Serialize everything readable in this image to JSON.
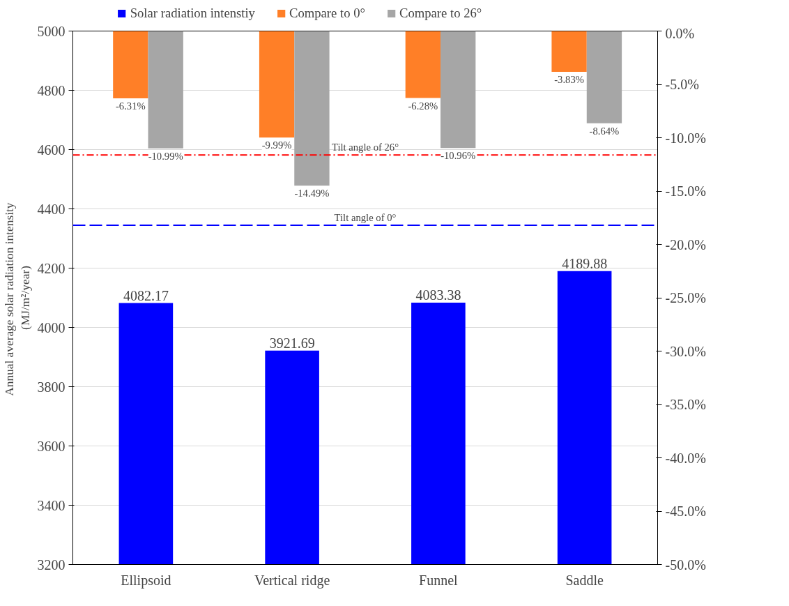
{
  "chart_data": {
    "type": "bar",
    "categories": [
      "Ellipsoid",
      "Vertical ridge",
      "Funnel",
      "Saddle"
    ],
    "ylabel": "Annual  average solar radiation intensity\n(MJ/m²/year)",
    "series": [
      {
        "name": "Solar radiation intenstiy",
        "color": "#0000ff",
        "values": [
          4082.17,
          3921.69,
          4083.38,
          4189.88
        ],
        "value_labels": [
          "4082.17",
          "3921.69",
          "4083.38",
          "4189.88"
        ]
      },
      {
        "name": "Compare to 0°",
        "color": "#ff7f27",
        "axis": "y2",
        "values": [
          -6.31,
          -9.99,
          -6.28,
          -3.83
        ],
        "value_labels": [
          "-6.31%",
          "-9.99%",
          "-6.28%",
          "-3.83%"
        ]
      },
      {
        "name": "Compare to 26°",
        "color": "#a6a6a6",
        "axis": "y2",
        "values": [
          -10.99,
          -14.49,
          -10.96,
          -8.64
        ],
        "value_labels": [
          "-10.99%",
          "-14.49%",
          "-10.96%",
          "-8.64%"
        ]
      }
    ],
    "ylim": [
      3200,
      5000
    ],
    "yticks": [
      3200,
      3400,
      3600,
      3800,
      4000,
      4200,
      4400,
      4600,
      4800,
      5000
    ],
    "y2lim": [
      -50,
      0
    ],
    "y2ticks": [
      {
        "value": -50,
        "label": "-50.0%"
      },
      {
        "value": -45,
        "label": "-45.0%"
      },
      {
        "value": -40,
        "label": "-40.0%"
      },
      {
        "value": -35,
        "label": "-35.0%"
      },
      {
        "value": -30,
        "label": "-30.0%"
      },
      {
        "value": -25,
        "label": "-25.0%"
      },
      {
        "value": -20,
        "label": "-20.0%"
      },
      {
        "value": -15,
        "label": "-15.0%"
      },
      {
        "value": -10,
        "label": "-10.0%"
      },
      {
        "value": -5,
        "label": "-5.0%"
      },
      {
        "value": 0,
        "label": "0.0%"
      }
    ],
    "ref_lines": [
      {
        "axis": "y",
        "value": 4582,
        "label": "Tilt angle of 26°",
        "color": "#ff0000",
        "line_style": "dashdot"
      },
      {
        "axis": "y",
        "value": 4345,
        "label": "Tilt angle of 0°",
        "color": "#0000ff",
        "line_style": "dashed"
      }
    ],
    "grid": "y",
    "legend": "top"
  }
}
